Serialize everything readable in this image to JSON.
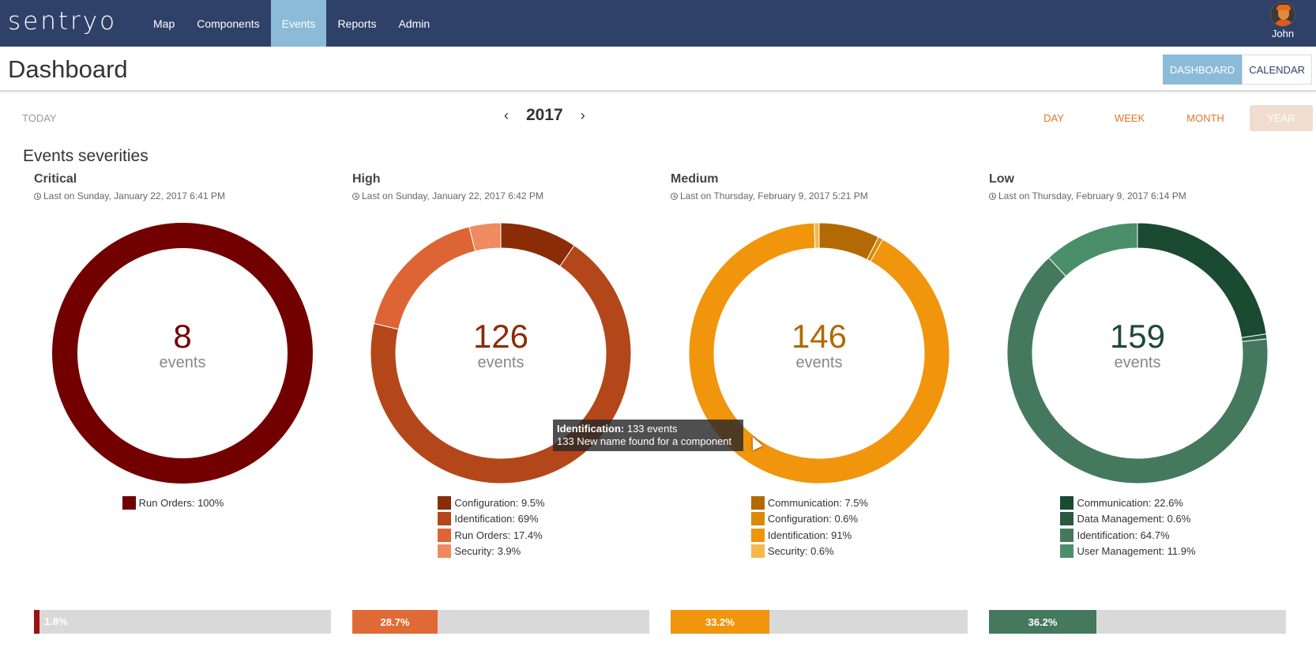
{
  "nav": {
    "logo": "sentryo",
    "items": [
      {
        "label": "Map",
        "active": false
      },
      {
        "label": "Components",
        "active": false
      },
      {
        "label": "Events",
        "active": true
      },
      {
        "label": "Reports",
        "active": false
      },
      {
        "label": "Admin",
        "active": false
      }
    ],
    "user": {
      "name": "John",
      "icon": "avatar-icon"
    }
  },
  "header": {
    "title": "Dashboard",
    "views": [
      {
        "label": "DASHBOARD",
        "active": true
      },
      {
        "label": "CALENDAR",
        "active": false
      }
    ]
  },
  "datebar": {
    "today_label": "TODAY",
    "prev": "‹",
    "next": "›",
    "year": "2017",
    "periods": [
      {
        "label": "DAY",
        "active": false
      },
      {
        "label": "WEEK",
        "active": false
      },
      {
        "label": "MONTH",
        "active": false
      },
      {
        "label": "YEAR",
        "active": true
      }
    ]
  },
  "section_title": "Events severities",
  "cards": [
    {
      "title": "Critical",
      "last": "Last on Sunday, January 22, 2017 6:41 PM",
      "count": "8",
      "unit": "events",
      "color": "#730000",
      "legend": [
        {
          "label": "Run Orders: 100%",
          "value": 100,
          "color": "#730000"
        }
      ],
      "bar": {
        "label": "1.8%",
        "value": 1.8,
        "color": "#9b1111"
      }
    },
    {
      "title": "High",
      "last": "Last on Sunday, January 22, 2017 6:42 PM",
      "count": "126",
      "unit": "events",
      "color": "#8c2a05",
      "legend": [
        {
          "label": "Configuration: 9.5%",
          "value": 9.5,
          "color": "#8a2c05"
        },
        {
          "label": "Identification: 69%",
          "value": 69,
          "color": "#b4471a"
        },
        {
          "label": "Run Orders: 17.4%",
          "value": 17.4,
          "color": "#dd6535"
        },
        {
          "label": "Security: 3.9%",
          "value": 3.9,
          "color": "#f08a60"
        }
      ],
      "bar": {
        "label": "28.7%",
        "value": 28.7,
        "color": "#e06a35"
      }
    },
    {
      "title": "Medium",
      "last": "Last on Thursday, February 9, 2017 5:21 PM",
      "count": "146",
      "unit": "events",
      "color": "#b06a05",
      "legend": [
        {
          "label": "Communication: 7.5%",
          "value": 7.5,
          "color": "#b36a05"
        },
        {
          "label": "Configuration: 0.6%",
          "value": 0.6,
          "color": "#d98a08"
        },
        {
          "label": "Identification: 91%",
          "value": 91,
          "color": "#f0950c"
        },
        {
          "label": "Security: 0.6%",
          "value": 0.6,
          "color": "#f6b84a"
        }
      ],
      "bar": {
        "label": "33.2%",
        "value": 33.2,
        "color": "#f0950c"
      }
    },
    {
      "title": "Low",
      "last": "Last on Thursday, February 9, 2017 6:14 PM",
      "count": "159",
      "unit": "events",
      "color": "#1d4a33",
      "legend": [
        {
          "label": "Communication: 22.6%",
          "value": 22.6,
          "color": "#1a4a30"
        },
        {
          "label": "Data Management: 0.6%",
          "value": 0.6,
          "color": "#2a5a40"
        },
        {
          "label": "Identification: 64.7%",
          "value": 64.7,
          "color": "#45795d"
        },
        {
          "label": "User Management: 11.9%",
          "value": 11.9,
          "color": "#4a8f6a"
        }
      ],
      "bar": {
        "label": "36.2%",
        "value": 36.2,
        "color": "#45795d"
      }
    }
  ],
  "tooltip": {
    "title": "Identification:",
    "value": "133 events",
    "detail": "133 New name found for a component"
  }
}
